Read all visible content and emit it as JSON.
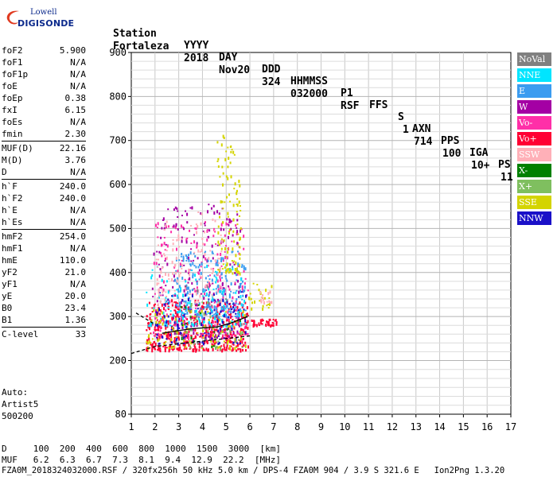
{
  "logo": {
    "line1": "Lowell",
    "line2": "DIGISONDE"
  },
  "header": {
    "labels": [
      "Station",
      "YYYY",
      "DAY",
      "DDD",
      "HHMMSS",
      "P1",
      "FFS",
      "S",
      "AXN",
      "PPS",
      "IGA",
      "PS"
    ],
    "values": [
      "Fortaleza",
      "2018",
      "Nov20",
      "324",
      "032000",
      "RSF",
      "",
      "1",
      "714",
      "100",
      "10+",
      "11"
    ]
  },
  "params": [
    {
      "group": [
        {
          "k": "foF2",
          "v": "5.900"
        },
        {
          "k": "foF1",
          "v": "N/A"
        },
        {
          "k": "foF1p",
          "v": "N/A"
        },
        {
          "k": "foE",
          "v": "N/A"
        },
        {
          "k": "foEp",
          "v": "0.38"
        },
        {
          "k": "fxI",
          "v": "6.15"
        },
        {
          "k": "foEs",
          "v": "N/A"
        },
        {
          "k": "fmin",
          "v": "2.30"
        }
      ]
    },
    {
      "group": [
        {
          "k": "MUF(D)",
          "v": "22.16"
        },
        {
          "k": "M(D)",
          "v": "3.76"
        },
        {
          "k": "D",
          "v": "N/A"
        }
      ]
    },
    {
      "group": [
        {
          "k": "h`F",
          "v": "240.0"
        },
        {
          "k": "h`F2",
          "v": "240.0"
        },
        {
          "k": "h`E",
          "v": "N/A"
        },
        {
          "k": "h`Es",
          "v": "N/A"
        }
      ]
    },
    {
      "group": [
        {
          "k": "hmF2",
          "v": "254.0"
        },
        {
          "k": "hmF1",
          "v": "N/A"
        },
        {
          "k": "hmE",
          "v": "110.0"
        },
        {
          "k": "yF2",
          "v": "21.0"
        },
        {
          "k": "yF1",
          "v": "N/A"
        },
        {
          "k": "yE",
          "v": "20.0"
        },
        {
          "k": "B0",
          "v": "23.4"
        },
        {
          "k": "B1",
          "v": "1.36"
        }
      ]
    },
    {
      "group": [
        {
          "k": "C-level",
          "v": "33"
        }
      ]
    }
  ],
  "auto": [
    "Auto:",
    "Artist5",
    "500200"
  ],
  "legend": [
    {
      "label": "NoVal",
      "color": "#808080"
    },
    {
      "label": "NNE",
      "color": "#00e5ff"
    },
    {
      "label": "E",
      "color": "#3b9cf0"
    },
    {
      "label": "W",
      "color": "#a400a4"
    },
    {
      "label": "Vo-",
      "color": "#ff2fa8"
    },
    {
      "label": "Vo+",
      "color": "#ff0033"
    },
    {
      "label": "SSW",
      "color": "#ffb0b8"
    },
    {
      "label": "X-",
      "color": "#008000"
    },
    {
      "label": "X+",
      "color": "#7fbf5f"
    },
    {
      "label": "SSE",
      "color": "#d4d400"
    },
    {
      "label": "NNW",
      "color": "#1a10c8"
    }
  ],
  "footer": {
    "d_row": "D     100  200  400  600  800  1000  1500  3000  [km]",
    "muf_row": "MUF   6.2  6.3  6.7  7.3  8.1  9.4  12.9  22.2  [MHz]",
    "file_row": "FZA0M_2018324032000.RSF / 320fx256h 50 kHz 5.0 km / DPS-4 FZA0M 904 / 3.9 S 321.6 E   Ion2Png 1.3.20"
  },
  "chart_data": {
    "type": "scatter",
    "title": "",
    "xlabel": "",
    "ylabel": "",
    "xlim": [
      1,
      17
    ],
    "ylim": [
      80,
      900
    ],
    "xticks": [
      1,
      2,
      3,
      4,
      5,
      6,
      7,
      8,
      9,
      10,
      11,
      12,
      13,
      14,
      15,
      16,
      17
    ],
    "yticks": [
      80,
      200,
      300,
      400,
      500,
      600,
      700,
      800,
      900
    ],
    "grid": true,
    "clusters": [
      {
        "series": "Vo+",
        "xmin": 1.6,
        "xmax": 5.9,
        "ymin": 225,
        "ymax": 340,
        "n": 520
      },
      {
        "series": "Vo+",
        "xmin": 6.0,
        "xmax": 7.1,
        "ymin": 282,
        "ymax": 296,
        "n": 40
      },
      {
        "series": "Vo-",
        "xmin": 1.9,
        "xmax": 5.9,
        "ymin": 250,
        "ymax": 520,
        "n": 240
      },
      {
        "series": "W",
        "xmin": 1.8,
        "xmax": 5.6,
        "ymin": 255,
        "ymax": 560,
        "n": 200
      },
      {
        "series": "E",
        "xmin": 2.8,
        "xmax": 5.8,
        "ymin": 300,
        "ymax": 450,
        "n": 220
      },
      {
        "series": "NNE",
        "xmin": 1.6,
        "xmax": 5.8,
        "ymin": 280,
        "ymax": 420,
        "n": 130
      },
      {
        "series": "NNW",
        "xmin": 2.0,
        "xmax": 5.8,
        "ymin": 240,
        "ymax": 360,
        "n": 110
      },
      {
        "series": "SSE",
        "xmin": 4.6,
        "xmax": 5.6,
        "ymin": 400,
        "ymax": 720,
        "n": 110
      },
      {
        "series": "SSE",
        "xmin": 1.6,
        "xmax": 5.8,
        "ymin": 230,
        "ymax": 320,
        "n": 90
      },
      {
        "series": "SSE",
        "xmin": 5.9,
        "xmax": 6.9,
        "ymin": 320,
        "ymax": 380,
        "n": 25
      },
      {
        "series": "SSW",
        "xmin": 2.0,
        "xmax": 4.8,
        "ymin": 330,
        "ymax": 540,
        "n": 110
      },
      {
        "series": "SSW",
        "xmin": 6.4,
        "xmax": 6.9,
        "ymin": 330,
        "ymax": 360,
        "n": 15
      },
      {
        "series": "X+",
        "xmin": 3.3,
        "xmax": 5.7,
        "ymin": 230,
        "ymax": 340,
        "n": 35
      },
      {
        "series": "X-",
        "xmin": 3.0,
        "xmax": 5.6,
        "ymin": 230,
        "ymax": 330,
        "n": 15
      },
      {
        "series": "NoVal",
        "xmin": 1.8,
        "xmax": 5.9,
        "ymin": 230,
        "ymax": 380,
        "n": 20
      }
    ],
    "profile_lines": [
      {
        "color": "#000000",
        "dash": "4,3",
        "points": [
          [
            1.2,
            308
          ],
          [
            2.0,
            282
          ]
        ]
      },
      {
        "color": "#000000",
        "dash": "",
        "points": [
          [
            2.3,
            262
          ],
          [
            3.0,
            268
          ],
          [
            3.5,
            272
          ],
          [
            4.0,
            274
          ],
          [
            4.6,
            276
          ],
          [
            5.2,
            285
          ],
          [
            5.9,
            300
          ]
        ]
      },
      {
        "color": "#000000",
        "dash": "4,3",
        "points": [
          [
            1.0,
            216
          ],
          [
            2.0,
            232
          ],
          [
            3.0,
            238
          ],
          [
            4.0,
            244
          ],
          [
            5.0,
            250
          ],
          [
            6.0,
            256
          ]
        ]
      }
    ]
  }
}
